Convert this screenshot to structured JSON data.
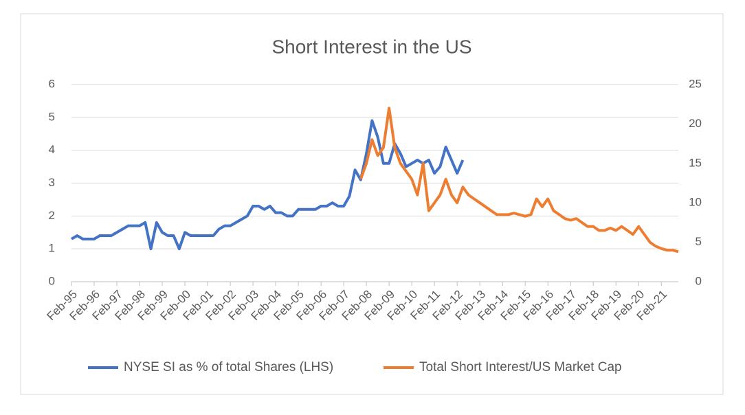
{
  "chart_data": {
    "type": "line",
    "title": "Short Interest in the US",
    "categories": [
      "Feb-95",
      null,
      null,
      null,
      "Feb-96",
      null,
      null,
      null,
      "Feb-97",
      null,
      null,
      null,
      "Feb-98",
      null,
      null,
      null,
      "Feb-99",
      null,
      null,
      null,
      "Feb-00",
      null,
      null,
      null,
      "Feb-01",
      null,
      null,
      null,
      "Feb-02",
      null,
      null,
      null,
      "Feb-03",
      null,
      null,
      null,
      "Feb-04",
      null,
      null,
      null,
      "Feb-05",
      null,
      null,
      null,
      "Feb-06",
      null,
      null,
      null,
      "Feb-07",
      null,
      null,
      null,
      "Feb-08",
      null,
      null,
      null,
      "Feb-09",
      null,
      null,
      null,
      "Feb-10",
      null,
      null,
      null,
      "Feb-11",
      null,
      null,
      null,
      "Feb-12",
      null,
      null,
      null,
      "Feb-13",
      null,
      null,
      null,
      "Feb-14",
      null,
      null,
      null,
      "Feb-15",
      null,
      null,
      null,
      "Feb-16",
      null,
      null,
      null,
      "Feb-17",
      null,
      null,
      null,
      "Feb-18",
      null,
      null,
      null,
      "Feb-19",
      null,
      null,
      null,
      "Feb-20",
      null,
      null,
      null,
      "Feb-21",
      null,
      null,
      null
    ],
    "series": [
      {
        "name": "NYSE SI as % of total Shares (LHS)",
        "color": "#4472c4",
        "axis": "y",
        "values": [
          1.3,
          1.4,
          1.3,
          1.3,
          1.3,
          1.4,
          1.4,
          1.4,
          1.5,
          1.6,
          1.7,
          1.7,
          1.7,
          1.8,
          1.0,
          1.8,
          1.5,
          1.4,
          1.4,
          1.0,
          1.5,
          1.4,
          1.4,
          1.4,
          1.4,
          1.4,
          1.6,
          1.7,
          1.7,
          1.8,
          1.9,
          2.0,
          2.3,
          2.3,
          2.2,
          2.3,
          2.1,
          2.1,
          2.0,
          2.0,
          2.2,
          2.2,
          2.2,
          2.2,
          2.3,
          2.3,
          2.4,
          2.3,
          2.3,
          2.6,
          3.4,
          3.1,
          3.9,
          4.9,
          4.4,
          3.6,
          3.6,
          4.2,
          3.9,
          3.5,
          3.6,
          3.7,
          3.6,
          3.7,
          3.3,
          3.5,
          4.1,
          3.7,
          3.3,
          3.7,
          null,
          null,
          null,
          null,
          null,
          null,
          null,
          null,
          null,
          null,
          null,
          null,
          null,
          null,
          null,
          null,
          null,
          null,
          null,
          null,
          null,
          null,
          null,
          null,
          null,
          null,
          null,
          null,
          null,
          null,
          null,
          null,
          null,
          null,
          null,
          null,
          null,
          null
        ]
      },
      {
        "name": "Total Short Interest/US Market Cap",
        "color": "#ed7d31",
        "axis": "y2",
        "values": [
          null,
          null,
          null,
          null,
          null,
          null,
          null,
          null,
          null,
          null,
          null,
          null,
          null,
          null,
          null,
          null,
          null,
          null,
          null,
          null,
          null,
          null,
          null,
          null,
          null,
          null,
          null,
          null,
          null,
          null,
          null,
          null,
          null,
          null,
          null,
          null,
          null,
          null,
          null,
          null,
          null,
          null,
          null,
          null,
          null,
          null,
          null,
          null,
          null,
          null,
          null,
          13,
          15,
          18,
          16,
          17,
          22,
          17,
          15,
          14,
          13,
          11,
          15,
          9,
          10,
          11,
          13,
          11,
          10,
          12,
          11,
          10.5,
          10,
          9.5,
          9,
          8.5,
          8.5,
          8.5,
          8.7,
          8.5,
          8.3,
          8.5,
          10.5,
          9.5,
          10.5,
          9,
          8.5,
          8,
          7.8,
          8,
          7.5,
          7,
          7,
          6.5,
          6.5,
          6.8,
          6.5,
          7,
          6.5,
          6,
          7,
          6,
          5,
          4.5,
          4.2,
          4,
          4,
          3.8
        ]
      }
    ],
    "ylim": [
      0,
      6
    ],
    "yticks": [
      0,
      1,
      2,
      3,
      4,
      5,
      6
    ],
    "y2lim": [
      0,
      25
    ],
    "y2ticks": [
      0,
      5,
      10,
      15,
      20,
      25
    ],
    "legend": "bottom"
  }
}
